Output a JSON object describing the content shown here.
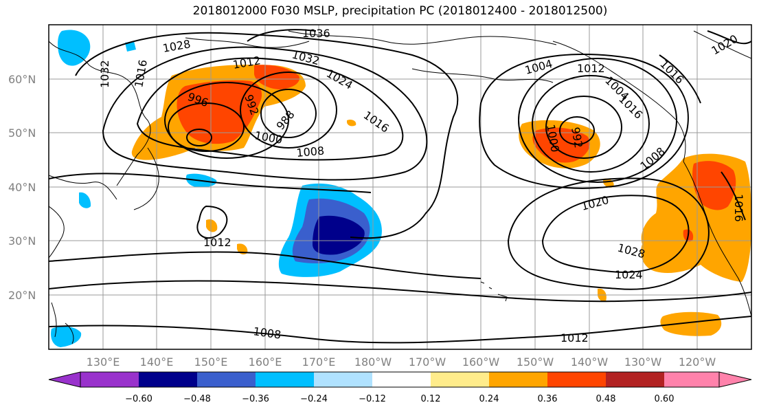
{
  "title": "2018012000 F030 MSLP, precipitation PC (2018012400 - 2018012500)",
  "map": {
    "lat_labels": [
      "60°N",
      "50°N",
      "40°N",
      "30°N",
      "20°N"
    ],
    "lon_labels": [
      "130°E",
      "140°E",
      "150°E",
      "160°E",
      "170°E",
      "180°W",
      "170°W",
      "160°W",
      "150°W",
      "140°W",
      "130°W",
      "120°W"
    ],
    "isobar_labels": [
      "1036",
      "1032",
      "1032",
      "1028",
      "1024",
      "1016",
      "1012",
      "1012",
      "1004",
      "1016",
      "1020",
      "1016",
      "1016",
      "1000",
      "1008",
      "996",
      "988",
      "992",
      "1000",
      "992",
      "1008",
      "1020",
      "1028",
      "1024",
      "1012",
      "1008",
      "1012",
      "1016",
      "1004"
    ]
  },
  "colorbar": {
    "ticks": [
      "−0.60",
      "−0.48",
      "−0.36",
      "−0.24",
      "−0.12",
      "0.12",
      "0.24",
      "0.36",
      "0.48",
      "0.60"
    ],
    "colors": [
      "#9932cc",
      "#00008b",
      "#3a5fcd",
      "#00bfff",
      "#b0e2ff",
      "#ffffff",
      "#ffec8b",
      "#ffa500",
      "#ff4500",
      "#b22222",
      "#ff82ab"
    ]
  }
}
